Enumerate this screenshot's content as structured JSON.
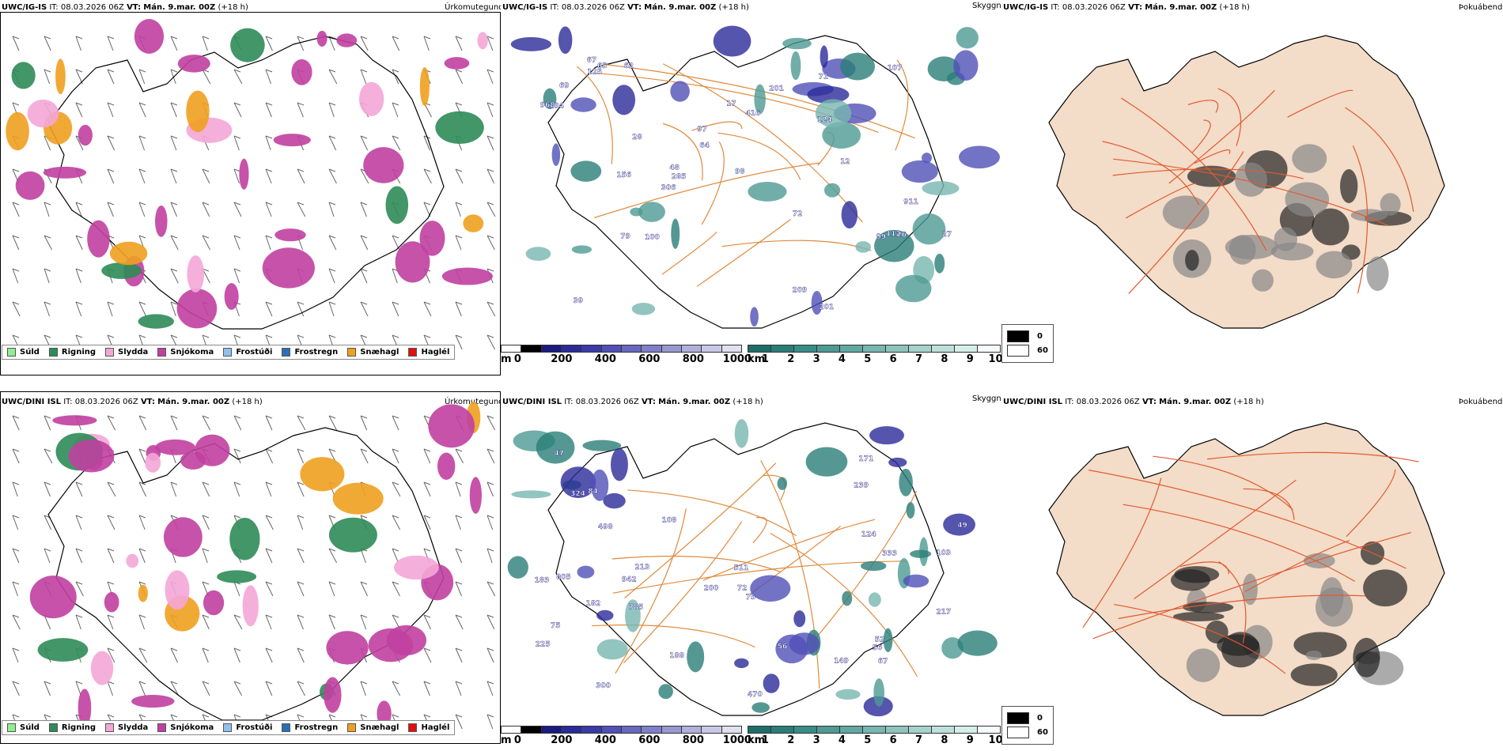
{
  "rows": [
    {
      "model": "UWC/IG-IS",
      "it_label": "IT:",
      "it_value": "08.03.2026 06Z",
      "vt_label": "VT:",
      "vt_value": "Mán. 9.mar. 00Z",
      "lead": "(+18 h)"
    },
    {
      "model": "UWC/DINI ISL",
      "it_label": "IT:",
      "it_value": "08.03.2026 06Z",
      "vt_label": "VT:",
      "vt_value": "Mán. 9.mar. 00Z",
      "lead": "(+18 h)"
    }
  ],
  "panel_titles": {
    "precip": "Úrkomutegund",
    "cloud": "Skyggni",
    "fog": "Þokuábendi"
  },
  "precip_legend": [
    {
      "label": "Súld",
      "color": "#90ee90"
    },
    {
      "label": "Rigning",
      "color": "#2e8b57"
    },
    {
      "label": "Slydda",
      "color": "#f4a6d7"
    },
    {
      "label": "Snjókoma",
      "color": "#c040a0"
    },
    {
      "label": "Frostúði",
      "color": "#90c0f0"
    },
    {
      "label": "Frostregn",
      "color": "#2a6fb5"
    },
    {
      "label": "Snæhagl",
      "color": "#f0a020"
    },
    {
      "label": "Haglél",
      "color": "#e01010"
    }
  ],
  "ceiling_scale": {
    "unit": "m",
    "ticks": [
      "0",
      "200",
      "400",
      "600",
      "800",
      "1000"
    ],
    "colors": [
      "#ffffff",
      "#000000",
      "#1a1a80",
      "#2a2a9a",
      "#3a3aa8",
      "#5050b8",
      "#6868c0",
      "#8080c8",
      "#9898d0",
      "#b0b0da",
      "#c8c8e6",
      "#e0e0f0"
    ]
  },
  "visibility_scale": {
    "unit": "km",
    "ticks": [
      "1",
      "2",
      "3",
      "4",
      "5",
      "6",
      "7",
      "8",
      "9",
      "10"
    ],
    "colors": [
      "#1e6e68",
      "#2a7e78",
      "#3a8c86",
      "#4e9a94",
      "#62a8a2",
      "#78b6b0",
      "#8ec4be",
      "#a6d2cc",
      "#bee0da",
      "#d6eee8",
      "#f4fbfa"
    ]
  },
  "fog_legend": [
    {
      "label": "0",
      "color": "#000000"
    },
    {
      "label": "60",
      "color": "#ffffff"
    }
  ],
  "map_labels": {
    "row0": [
      "209",
      "27",
      "156",
      "194",
      "107",
      "285",
      "67",
      "99",
      "124",
      "79",
      "62",
      "201",
      "72",
      "64",
      "48",
      "71",
      "201",
      "306",
      "12",
      "97",
      "112",
      "39",
      "911",
      "28",
      "125",
      "17",
      "26",
      "65",
      "98",
      "968",
      "416",
      "100",
      "69"
    ],
    "row1": [
      "470",
      "498",
      "188",
      "75",
      "72",
      "182",
      "333",
      "56",
      "67",
      "56",
      "124",
      "149",
      "171",
      "200",
      "300",
      "805",
      "52",
      "511",
      "183",
      "108",
      "225",
      "103",
      "213",
      "324",
      "942",
      "217",
      "47",
      "84",
      "239",
      "785",
      "75",
      "49"
    ]
  }
}
